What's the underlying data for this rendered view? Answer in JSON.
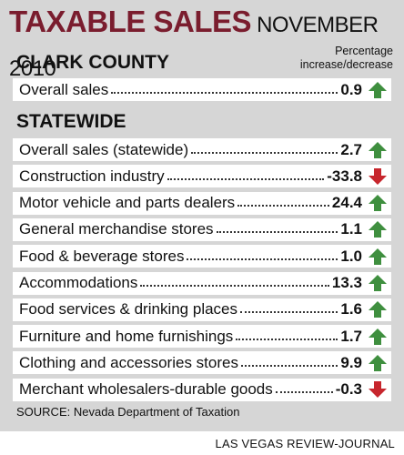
{
  "title": "TAXABLE SALES",
  "subtitle": "NOVEMBER 2010",
  "percentage_label_line1": "Percentage",
  "percentage_label_line2": "increase/decrease",
  "sections": [
    {
      "name": "CLARK COUNTY"
    },
    {
      "name": "STATEWIDE"
    }
  ],
  "source": "SOURCE: Nevada Department of Taxation",
  "credit": "LAS VEGAS REVIEW-JOURNAL",
  "colors": {
    "title": "#7a1d2e",
    "up": "#3f8f3f",
    "down": "#c7262d",
    "panel": "#d6d6d6"
  },
  "chart_data": {
    "type": "table",
    "title": "TAXABLE SALES",
    "subtitle": "NOVEMBER 2010",
    "value_label": "Percentage increase/decrease",
    "groups": [
      {
        "name": "CLARK COUNTY",
        "rows": [
          {
            "label": "Overall sales",
            "value": "0.9",
            "direction": "up"
          }
        ]
      },
      {
        "name": "STATEWIDE",
        "rows": [
          {
            "label": "Overall sales (statewide)",
            "value": "2.7",
            "direction": "up"
          },
          {
            "label": "Construction industry",
            "value": "-33.8",
            "direction": "down"
          },
          {
            "label": "Motor vehicle and parts dealers",
            "value": "24.4",
            "direction": "up"
          },
          {
            "label": "General merchandise stores",
            "value": "1.1",
            "direction": "up"
          },
          {
            "label": "Food & beverage stores",
            "value": "1.0",
            "direction": "up"
          },
          {
            "label": "Accommodations",
            "value": "13.3",
            "direction": "up"
          },
          {
            "label": "Food services & drinking places",
            "value": "1.6",
            "direction": "up"
          },
          {
            "label": "Furniture and home furnishings",
            "value": "1.7",
            "direction": "up"
          },
          {
            "label": "Clothing and accessories stores",
            "value": "9.9",
            "direction": "up"
          },
          {
            "label": "Merchant wholesalers-durable goods",
            "value": "-0.3",
            "direction": "down"
          }
        ]
      }
    ]
  }
}
